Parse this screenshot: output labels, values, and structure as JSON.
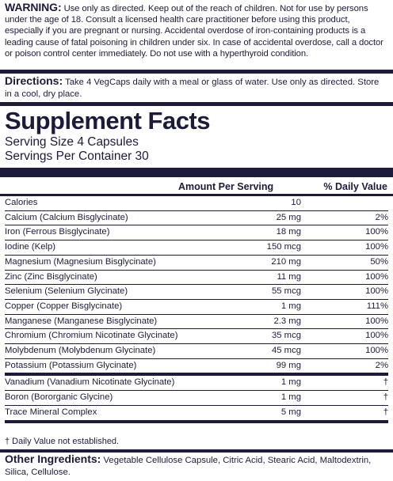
{
  "warning": {
    "label": "WARNING:",
    "text": "Use only as directed. Keep out of the reach of children. Not for use by persons under the age of 18. Consult a licensed health care practitioner before using this product, especially if you are pregnant or nursing. Accidental overdose of iron-containing products is a leading cause of fatal poisoning in children under six. In case of accidental overdose, call a doctor or poison control center immediately. Do not use with a hyperthyroid condition."
  },
  "directions": {
    "label": "Directions:",
    "text": "Take 4 VegCaps daily with a meal or glass of water. Use only as directed. Store in a cool, dry place."
  },
  "facts": {
    "title": "Supplement Facts",
    "serving_size": "Serving Size 4 Capsules",
    "servings_per_container": "Servings Per Container 30",
    "col_amount": "Amount Per Serving",
    "col_dv": "% Daily Value",
    "rows": [
      {
        "name": "Calories",
        "amount": "10",
        "dv": ""
      },
      {
        "name": "Calcium (Calcium Bisglycinate)",
        "amount": "25 mg",
        "dv": "2%"
      },
      {
        "name": "Iron (Ferrous Bisglycinate)",
        "amount": "18 mg",
        "dv": "100%"
      },
      {
        "name": "Iodine (Kelp)",
        "amount": "150 mcg",
        "dv": "100%"
      },
      {
        "name": "Magnesium (Magnesium Bisglycinate)",
        "amount": "210 mg",
        "dv": "50%"
      },
      {
        "name": "Zinc (Zinc Bisglycinate)",
        "amount": "11 mg",
        "dv": "100%"
      },
      {
        "name": "Selenium (Selenium Glycinate)",
        "amount": "55 mcg",
        "dv": "100%"
      },
      {
        "name": "Copper (Copper Bisglycinate)",
        "amount": "1 mg",
        "dv": "111%"
      },
      {
        "name": "Manganese (Manganese Bisglycinate)",
        "amount": "2.3 mg",
        "dv": "100%"
      },
      {
        "name": "Chromium (Chromium Nicotinate Glycinate)",
        "amount": "35 mcg",
        "dv": "100%"
      },
      {
        "name": "Molybdenum (Molybdenum Glycinate)",
        "amount": "45 mcg",
        "dv": "100%"
      },
      {
        "name": "Potassium (Potassium Glycinate)",
        "amount": "99 mg",
        "dv": "2%"
      },
      {
        "name": "Vanadium (Vanadium Nicotinate Glycinate)",
        "amount": "1 mg",
        "dv": "†"
      },
      {
        "name": "Boron (Bororganic Glycine)",
        "amount": "1 mg",
        "dv": "†"
      },
      {
        "name": "Trace Mineral Complex",
        "amount": "5 mg",
        "dv": "†"
      }
    ],
    "footnote": "† Daily Value not established."
  },
  "other_ingredients": {
    "label": "Other Ingredients:",
    "text": "Vegetable Cellulose Capsule, Citric Acid, Stearic Acid, Maltodextrin, Silica, Cellulose."
  }
}
